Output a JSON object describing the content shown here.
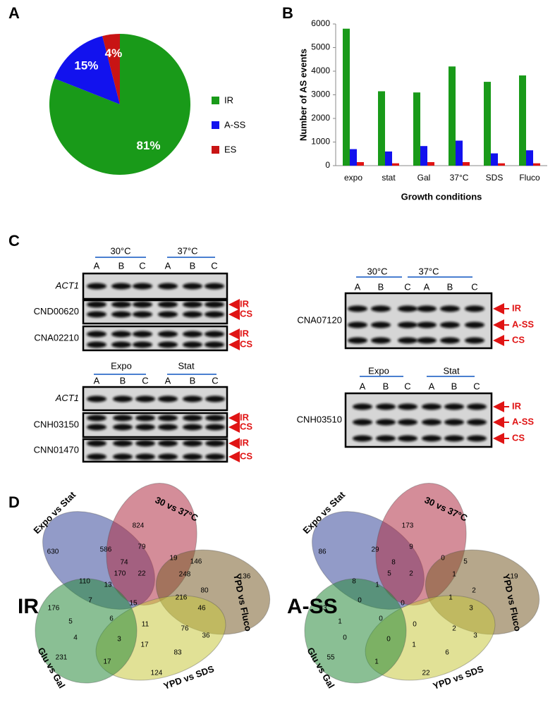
{
  "panel_labels": [
    "A",
    "B",
    "C",
    "D"
  ],
  "chart_data": [
    {
      "type": "pie",
      "categories": [
        "IR",
        "A-SS",
        "ES"
      ],
      "values": [
        81,
        15,
        4
      ],
      "value_labels": [
        "81%",
        "15%",
        "4%"
      ],
      "colors": [
        "#199a19",
        "#1212ee",
        "#c81414"
      ]
    },
    {
      "type": "bar",
      "x_label": "Growth conditions",
      "y_label": "Number of AS events",
      "categories": [
        "expo",
        "stat",
        "Gal",
        "37°C",
        "SDS",
        "Fluco"
      ],
      "series": [
        {
          "color": "#199a19",
          "values": [
            5800,
            3150,
            3100,
            4200,
            3550,
            3820
          ]
        },
        {
          "color": "#1212ee",
          "values": [
            700,
            600,
            830,
            1060,
            520,
            650
          ]
        },
        {
          "color": "#e01414",
          "values": [
            150,
            100,
            150,
            150,
            100,
            100
          ]
        }
      ],
      "ylim": [
        0,
        6000
      ],
      "yticks": [
        0,
        1000,
        2000,
        3000,
        4000,
        5000,
        6000
      ]
    }
  ],
  "gels": [
    {
      "headers": [
        "30°C",
        "37°C"
      ],
      "lanes": [
        "A",
        "B",
        "C",
        "A",
        "B",
        "C"
      ],
      "rows": [
        {
          "name": "ACT1",
          "bands": []
        },
        {
          "name": "CND00620",
          "bands": [
            "IR",
            "CS"
          ]
        },
        {
          "name": "CNA02210",
          "bands": [
            "IR",
            "CS"
          ]
        }
      ]
    },
    {
      "headers": [
        "Expo",
        "Stat"
      ],
      "lanes": [
        "A",
        "B",
        "C",
        "A",
        "B",
        "C"
      ],
      "rows": [
        {
          "name": "ACT1",
          "bands": []
        },
        {
          "name": "CNH03150",
          "bands": [
            "IR",
            "CS"
          ]
        },
        {
          "name": "CNN01470",
          "bands": [
            "IR",
            "CS"
          ]
        }
      ]
    },
    {
      "headers": [
        "30°C",
        "37°C"
      ],
      "lanes": [
        "A",
        "B",
        "C",
        "A",
        "B",
        "C"
      ],
      "rows": [
        {
          "name": "CNA07120",
          "bands": [
            "IR",
            "A-SS",
            "CS"
          ]
        }
      ]
    },
    {
      "headers": [
        "Expo",
        "Stat"
      ],
      "lanes": [
        "A",
        "B",
        "C",
        "A",
        "B",
        "C"
      ],
      "rows": [
        {
          "name": "CNH03510",
          "bands": [
            "IR",
            "A-SS",
            "CS"
          ]
        }
      ]
    }
  ],
  "venns": [
    {
      "label": "IR",
      "sets": [
        "Expo vs Stat",
        "30 vs 37°C",
        "YPD vs Fluco",
        "YPD vs SDS",
        "Glu vs Gal"
      ],
      "counts": [
        824,
        586,
        79,
        630,
        19,
        146,
        136,
        170,
        74,
        22,
        248,
        110,
        13,
        80,
        7,
        15,
        216,
        46,
        176,
        6,
        11,
        76,
        36,
        5,
        4,
        3,
        17,
        83,
        17,
        231,
        124
      ]
    },
    {
      "label": "A-SS",
      "sets": [
        "Expo vs Stat",
        "30 vs 37°C",
        "YPD vs Fluco",
        "YPD vs SDS",
        "Glu vs Gal"
      ],
      "counts": [
        173,
        29,
        9,
        86,
        0,
        5,
        19,
        5,
        8,
        2,
        1,
        8,
        1,
        2,
        0,
        0,
        1,
        3,
        23,
        0,
        0,
        2,
        3,
        1,
        0,
        0,
        1,
        6,
        1,
        55,
        22
      ]
    }
  ]
}
